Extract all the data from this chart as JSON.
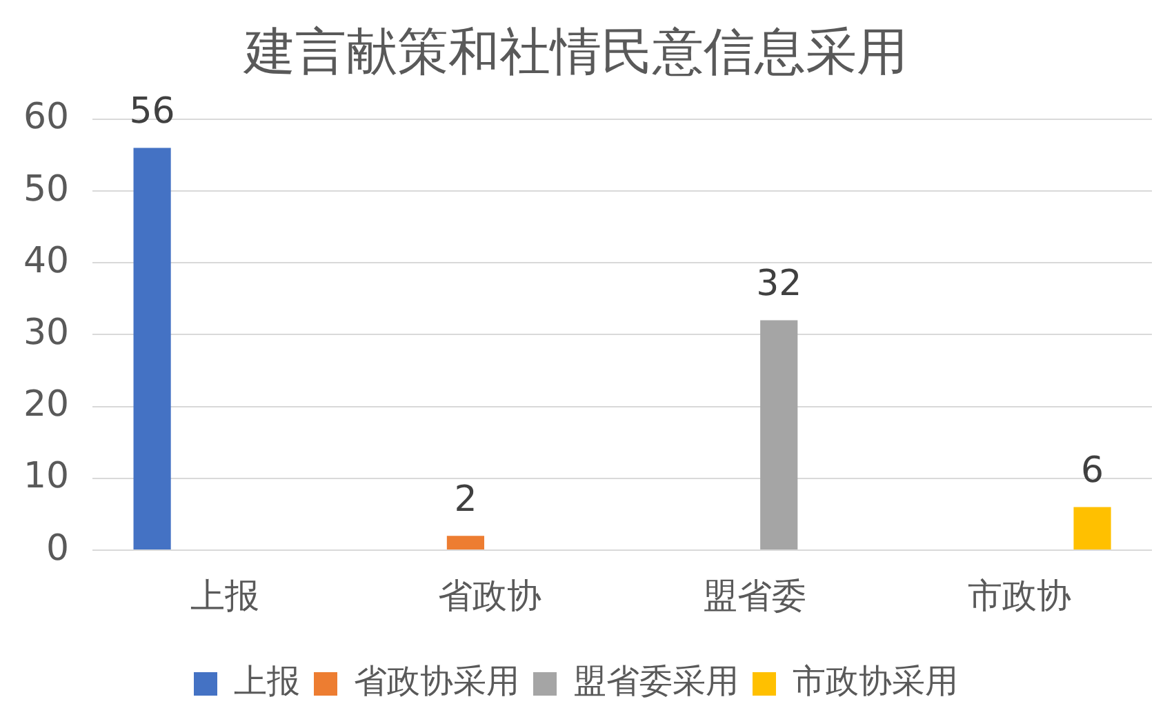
{
  "chart_data": {
    "type": "bar",
    "title": "建言献策和社情民意信息采用",
    "categories": [
      "上报",
      "省政协",
      "盟省委",
      "市政协"
    ],
    "series": [
      {
        "name": "上报",
        "color": "#4472c4",
        "values": [
          56,
          null,
          null,
          null
        ]
      },
      {
        "name": "省政协采用",
        "color": "#ed7d31",
        "values": [
          null,
          2,
          null,
          null
        ]
      },
      {
        "name": "盟省委采用",
        "color": "#a5a5a5",
        "values": [
          null,
          null,
          32,
          null
        ]
      },
      {
        "name": "市政协采用",
        "color": "#ffc000",
        "values": [
          null,
          null,
          null,
          6
        ]
      }
    ],
    "ylim": [
      0,
      60
    ],
    "yticks": [
      0,
      10,
      20,
      30,
      40,
      50,
      60
    ],
    "grid": "y",
    "legend": "bottom",
    "data_labels": true
  }
}
